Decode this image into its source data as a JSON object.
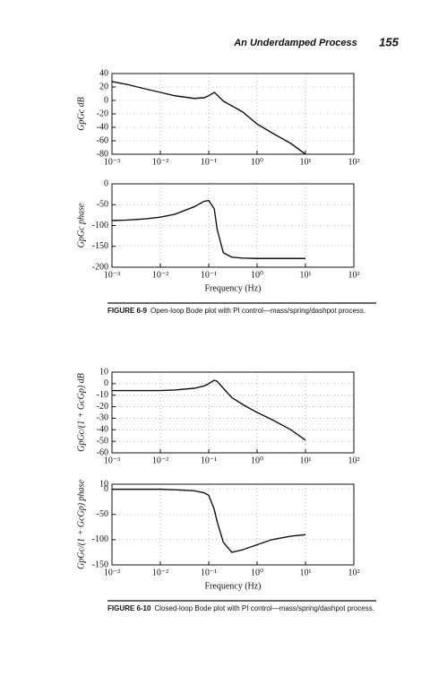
{
  "header": {
    "title": "An Underdamped Process",
    "page": "155"
  },
  "chart_data": [
    {
      "type": "line",
      "ylabel": "GpGc dB",
      "x": [
        0.001,
        0.002,
        0.005,
        0.01,
        0.02,
        0.05,
        0.08,
        0.1,
        0.13,
        0.15,
        0.2,
        0.3,
        0.5,
        1,
        2,
        5,
        10
      ],
      "series": [
        {
          "color": "#111111",
          "values": [
            28,
            24,
            17,
            12,
            7,
            3,
            4,
            7,
            12,
            8,
            -1,
            -8,
            -17,
            -35,
            -48,
            -64,
            -80
          ]
        }
      ],
      "xlim": [
        0.001,
        100
      ],
      "ylim": [
        -80,
        40
      ],
      "log_x": true,
      "grid": true,
      "xticks": [
        {
          "value": 0.001,
          "label": "10⁻³"
        },
        {
          "value": 0.01,
          "label": "10⁻²"
        },
        {
          "value": 0.1,
          "label": "10⁻¹"
        },
        {
          "value": 1,
          "label": "10⁰"
        },
        {
          "value": 10,
          "label": "10¹"
        },
        {
          "value": 100,
          "label": "10²"
        }
      ],
      "yticks": [
        -80,
        -60,
        -40,
        -20,
        0,
        20,
        40
      ]
    },
    {
      "type": "line",
      "ylabel": "GpGc phase",
      "xlabel": "Frequency (Hz)",
      "x": [
        0.001,
        0.002,
        0.005,
        0.01,
        0.02,
        0.05,
        0.08,
        0.1,
        0.13,
        0.15,
        0.2,
        0.3,
        0.5,
        1,
        2,
        5,
        10
      ],
      "series": [
        {
          "color": "#111111",
          "values": [
            -88,
            -87,
            -84,
            -80,
            -73,
            -55,
            -42,
            -40,
            -60,
            -110,
            -165,
            -176,
            -178,
            -179,
            -179,
            -179,
            -179
          ]
        }
      ],
      "xlim": [
        0.001,
        100
      ],
      "ylim": [
        -200,
        0
      ],
      "log_x": true,
      "grid": true,
      "xticks": [
        {
          "value": 0.001,
          "label": "10⁻³"
        },
        {
          "value": 0.01,
          "label": "10⁻²"
        },
        {
          "value": 0.1,
          "label": "10⁻¹"
        },
        {
          "value": 1,
          "label": "10⁰"
        },
        {
          "value": 10,
          "label": "10¹"
        },
        {
          "value": 100,
          "label": "10²"
        }
      ],
      "yticks": [
        -200,
        -150,
        -100,
        -50,
        0
      ]
    },
    {
      "type": "line",
      "ylabel": "GpGc/(1 + GcGp) dB",
      "x": [
        0.001,
        0.002,
        0.005,
        0.01,
        0.02,
        0.05,
        0.08,
        0.1,
        0.13,
        0.15,
        0.2,
        0.3,
        0.5,
        1,
        2,
        5,
        10
      ],
      "series": [
        {
          "color": "#111111",
          "values": [
            -6,
            -6,
            -6,
            -6,
            -5.5,
            -4,
            -2,
            0,
            3,
            2,
            -4,
            -12,
            -18,
            -25,
            -31,
            -40,
            -49
          ]
        }
      ],
      "xlim": [
        0.001,
        100
      ],
      "ylim": [
        -60,
        10
      ],
      "log_x": true,
      "grid": true,
      "xticks": [
        {
          "value": 0.001,
          "label": "10⁻³"
        },
        {
          "value": 0.01,
          "label": "10⁻²"
        },
        {
          "value": 0.1,
          "label": "10⁻¹"
        },
        {
          "value": 1,
          "label": "10⁰"
        },
        {
          "value": 10,
          "label": "10¹"
        },
        {
          "value": 100,
          "label": "10²"
        }
      ],
      "yticks": [
        -60,
        -50,
        -40,
        -30,
        -20,
        -10,
        0,
        10
      ]
    },
    {
      "type": "line",
      "ylabel": "GpGc/(1 + GcGp) phase",
      "xlabel": "Frequency (Hz)",
      "x": [
        0.001,
        0.002,
        0.005,
        0.01,
        0.02,
        0.05,
        0.08,
        0.1,
        0.13,
        0.15,
        0.2,
        0.3,
        0.5,
        1,
        2,
        5,
        10
      ],
      "series": [
        {
          "color": "#111111",
          "values": [
            0,
            0,
            0,
            0,
            -1,
            -3,
            -7,
            -12,
            -40,
            -65,
            -105,
            -125,
            -120,
            -110,
            -100,
            -93,
            -90
          ]
        }
      ],
      "xlim": [
        0.001,
        100
      ],
      "ylim": [
        -150,
        10
      ],
      "log_x": true,
      "grid": true,
      "xticks": [
        {
          "value": 0.001,
          "label": "10⁻³"
        },
        {
          "value": 0.01,
          "label": "10⁻²"
        },
        {
          "value": 0.1,
          "label": "10⁻¹"
        },
        {
          "value": 1,
          "label": "10⁰"
        },
        {
          "value": 10,
          "label": "10¹"
        },
        {
          "value": 100,
          "label": "10²"
        }
      ],
      "yticks": [
        -150,
        -100,
        -50,
        0,
        10
      ]
    }
  ],
  "captions": [
    {
      "label": "FIGURE 6-9",
      "text": "Open-loop Bode plot with PI control—mass/spring/dashpot process."
    },
    {
      "label": "FIGURE 6-10",
      "text": "Closed-loop Bode plot with PI control—mass/spring/dashpot process."
    }
  ]
}
